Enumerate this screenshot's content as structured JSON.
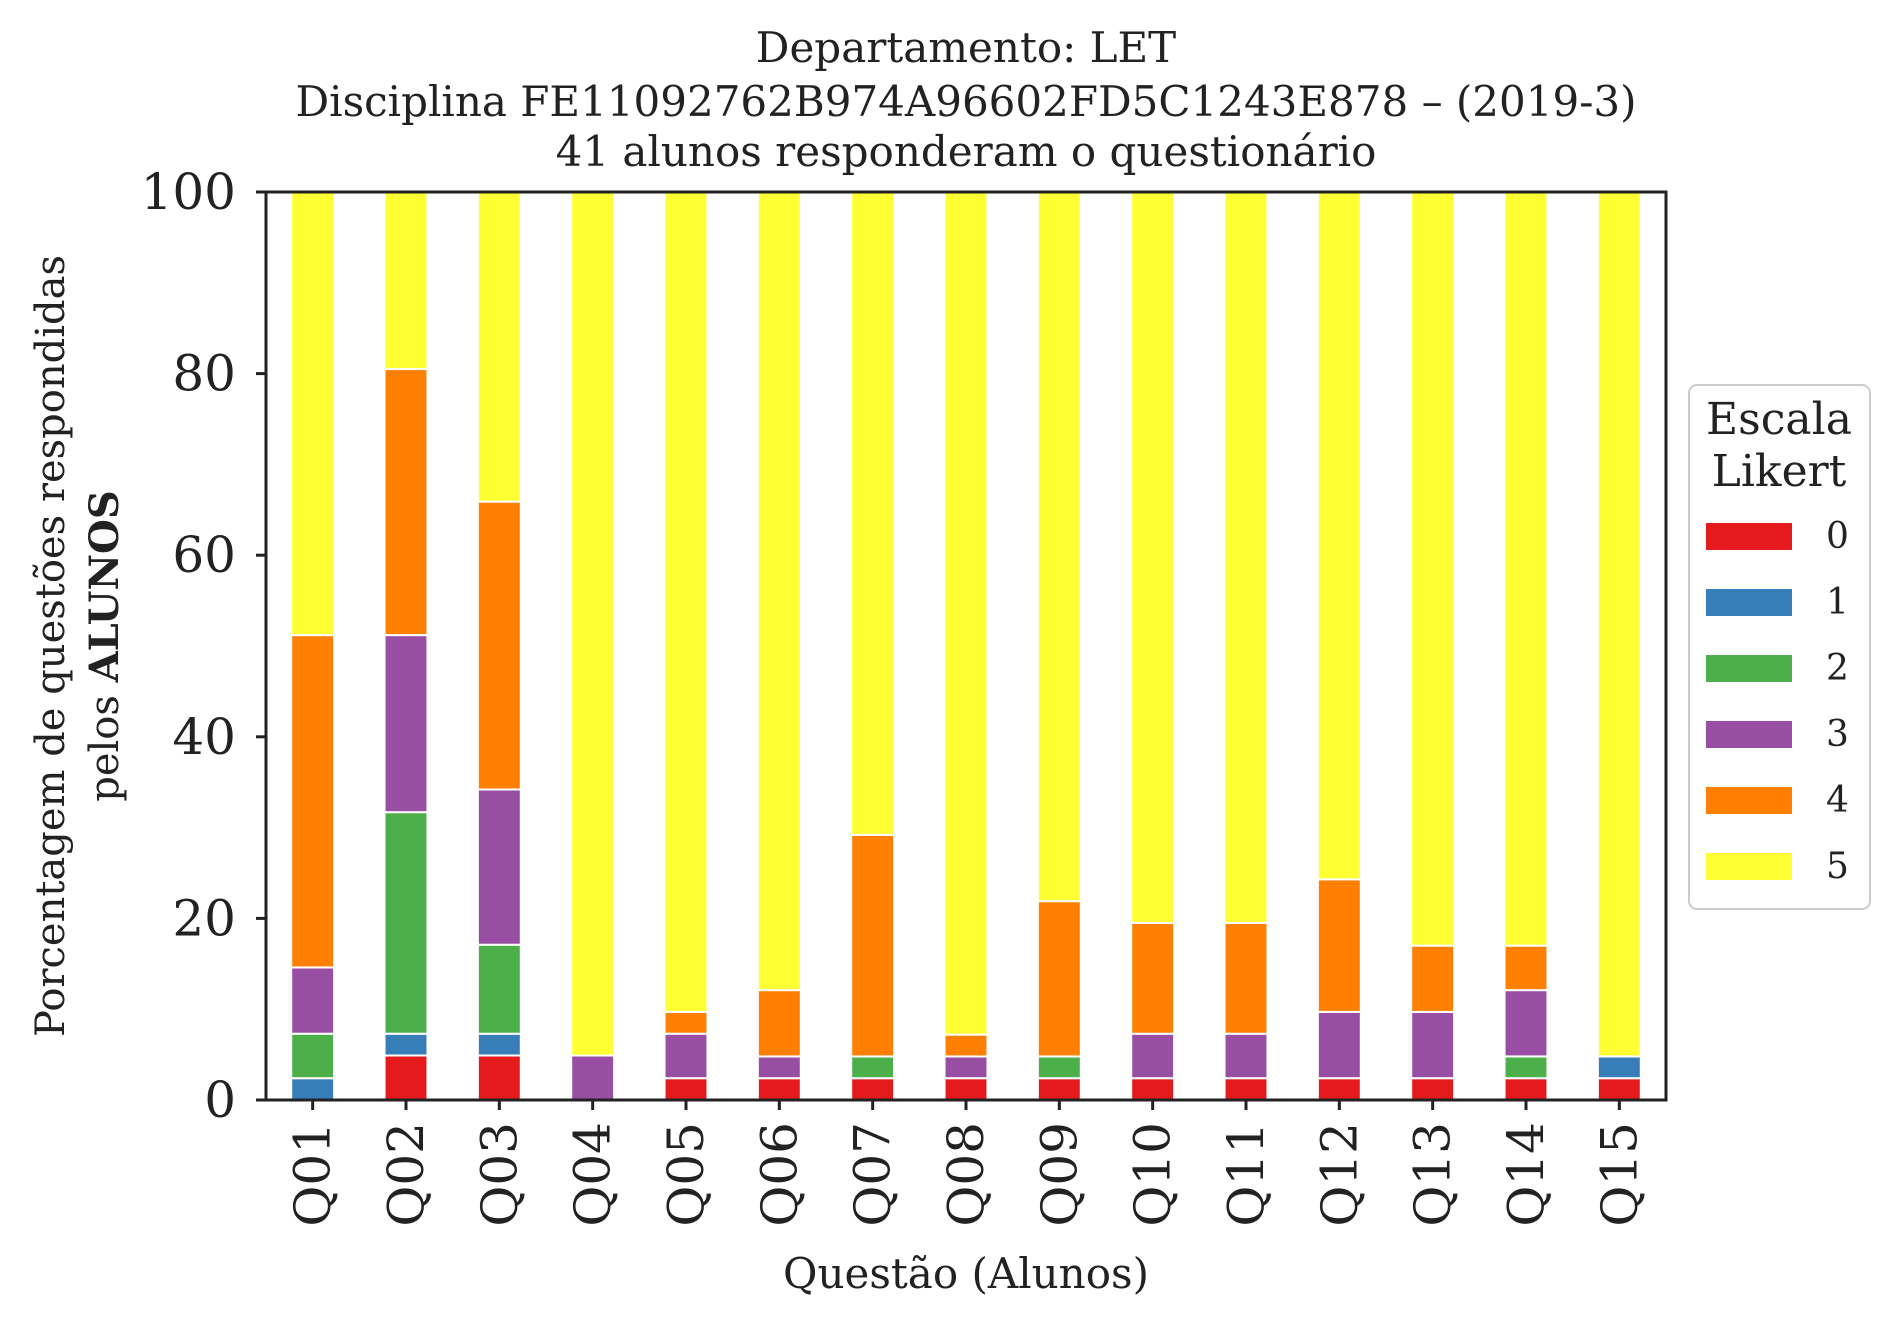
{
  "chart_data": {
    "type": "bar",
    "stacked": true,
    "title": {
      "line1": "Departamento: LET",
      "line2": "Disciplina FE11092762B974A96602FD5C1243E878 – (2019-3)",
      "line3": "41 alunos responderam o questionário"
    },
    "xlabel": "Questão (Alunos)",
    "ylabel": {
      "line1": "Porcentagem de questões respondidas",
      "line2_prefix": "pelos ",
      "line2_bold": "ALUNOS"
    },
    "ylim": [
      0,
      100
    ],
    "yticks": [
      "0",
      "20",
      "40",
      "60",
      "80",
      "100"
    ],
    "grid": false,
    "legend": {
      "placement": "right",
      "title_line1": "Escala",
      "title_line2": "Likert"
    },
    "categories": [
      "Q01",
      "Q02",
      "Q03",
      "Q04",
      "Q05",
      "Q06",
      "Q07",
      "Q08",
      "Q09",
      "Q10",
      "Q11",
      "Q12",
      "Q13",
      "Q14",
      "Q15"
    ],
    "series": [
      {
        "name": "0",
        "color": "#e41a1c",
        "values": [
          0,
          4.9,
          4.9,
          0,
          2.4,
          2.4,
          2.4,
          2.4,
          2.4,
          2.4,
          2.4,
          2.4,
          2.4,
          2.4,
          2.4
        ]
      },
      {
        "name": "1",
        "color": "#377eb8",
        "values": [
          2.4,
          2.4,
          2.4,
          0,
          0,
          0,
          0,
          0,
          0,
          0,
          0,
          0,
          0,
          0,
          2.4
        ]
      },
      {
        "name": "2",
        "color": "#4daf4a",
        "values": [
          4.9,
          24.4,
          9.8,
          0,
          0,
          0,
          2.4,
          0,
          2.4,
          0,
          0,
          0,
          0,
          2.4,
          0
        ]
      },
      {
        "name": "3",
        "color": "#984ea3",
        "values": [
          7.3,
          19.5,
          17.1,
          4.9,
          4.9,
          2.4,
          0,
          2.4,
          0,
          4.9,
          4.9,
          7.3,
          7.3,
          7.3,
          0
        ]
      },
      {
        "name": "4",
        "color": "#ff7f00",
        "values": [
          36.6,
          29.3,
          31.7,
          0,
          2.4,
          7.3,
          24.4,
          2.4,
          17.1,
          12.2,
          12.2,
          14.6,
          7.3,
          4.9,
          0
        ]
      },
      {
        "name": "5",
        "color": "#ffff33",
        "values": [
          48.8,
          19.5,
          34.1,
          95.1,
          90.3,
          87.9,
          70.8,
          92.8,
          78.1,
          80.5,
          80.5,
          75.7,
          83.0,
          83.0,
          95.2
        ]
      }
    ]
  }
}
